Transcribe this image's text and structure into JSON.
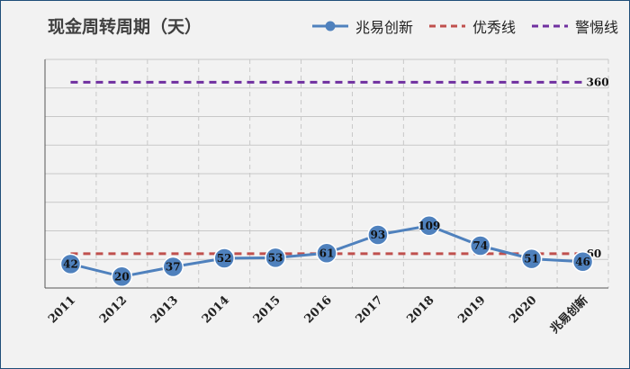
{
  "chart_data": {
    "type": "line",
    "title": "现金周转周期（天）",
    "categories": [
      "2011",
      "2012",
      "2013",
      "2014",
      "2015",
      "2016",
      "2017",
      "2018",
      "2019",
      "2020",
      "兆易创新"
    ],
    "series": [
      {
        "name": "兆易创新",
        "style": "line-marker",
        "color": "#4f81bd",
        "values": [
          42,
          20,
          37,
          52,
          53,
          61,
          93,
          109,
          74,
          51,
          46
        ]
      },
      {
        "name": "优秀线",
        "style": "dashed",
        "color": "#c0504d",
        "values": [
          60,
          60,
          60,
          60,
          60,
          60,
          60,
          60,
          60,
          60,
          60
        ]
      },
      {
        "name": "警惕线",
        "style": "dashed",
        "color": "#7030a0",
        "values": [
          360,
          360,
          360,
          360,
          360,
          360,
          360,
          360,
          360,
          360,
          360
        ]
      }
    ],
    "end_labels": {
      "优秀线": "60",
      "警惕线": "360"
    },
    "ylim": [
      0,
      400
    ],
    "grid": true,
    "legend_position": "top-right"
  }
}
